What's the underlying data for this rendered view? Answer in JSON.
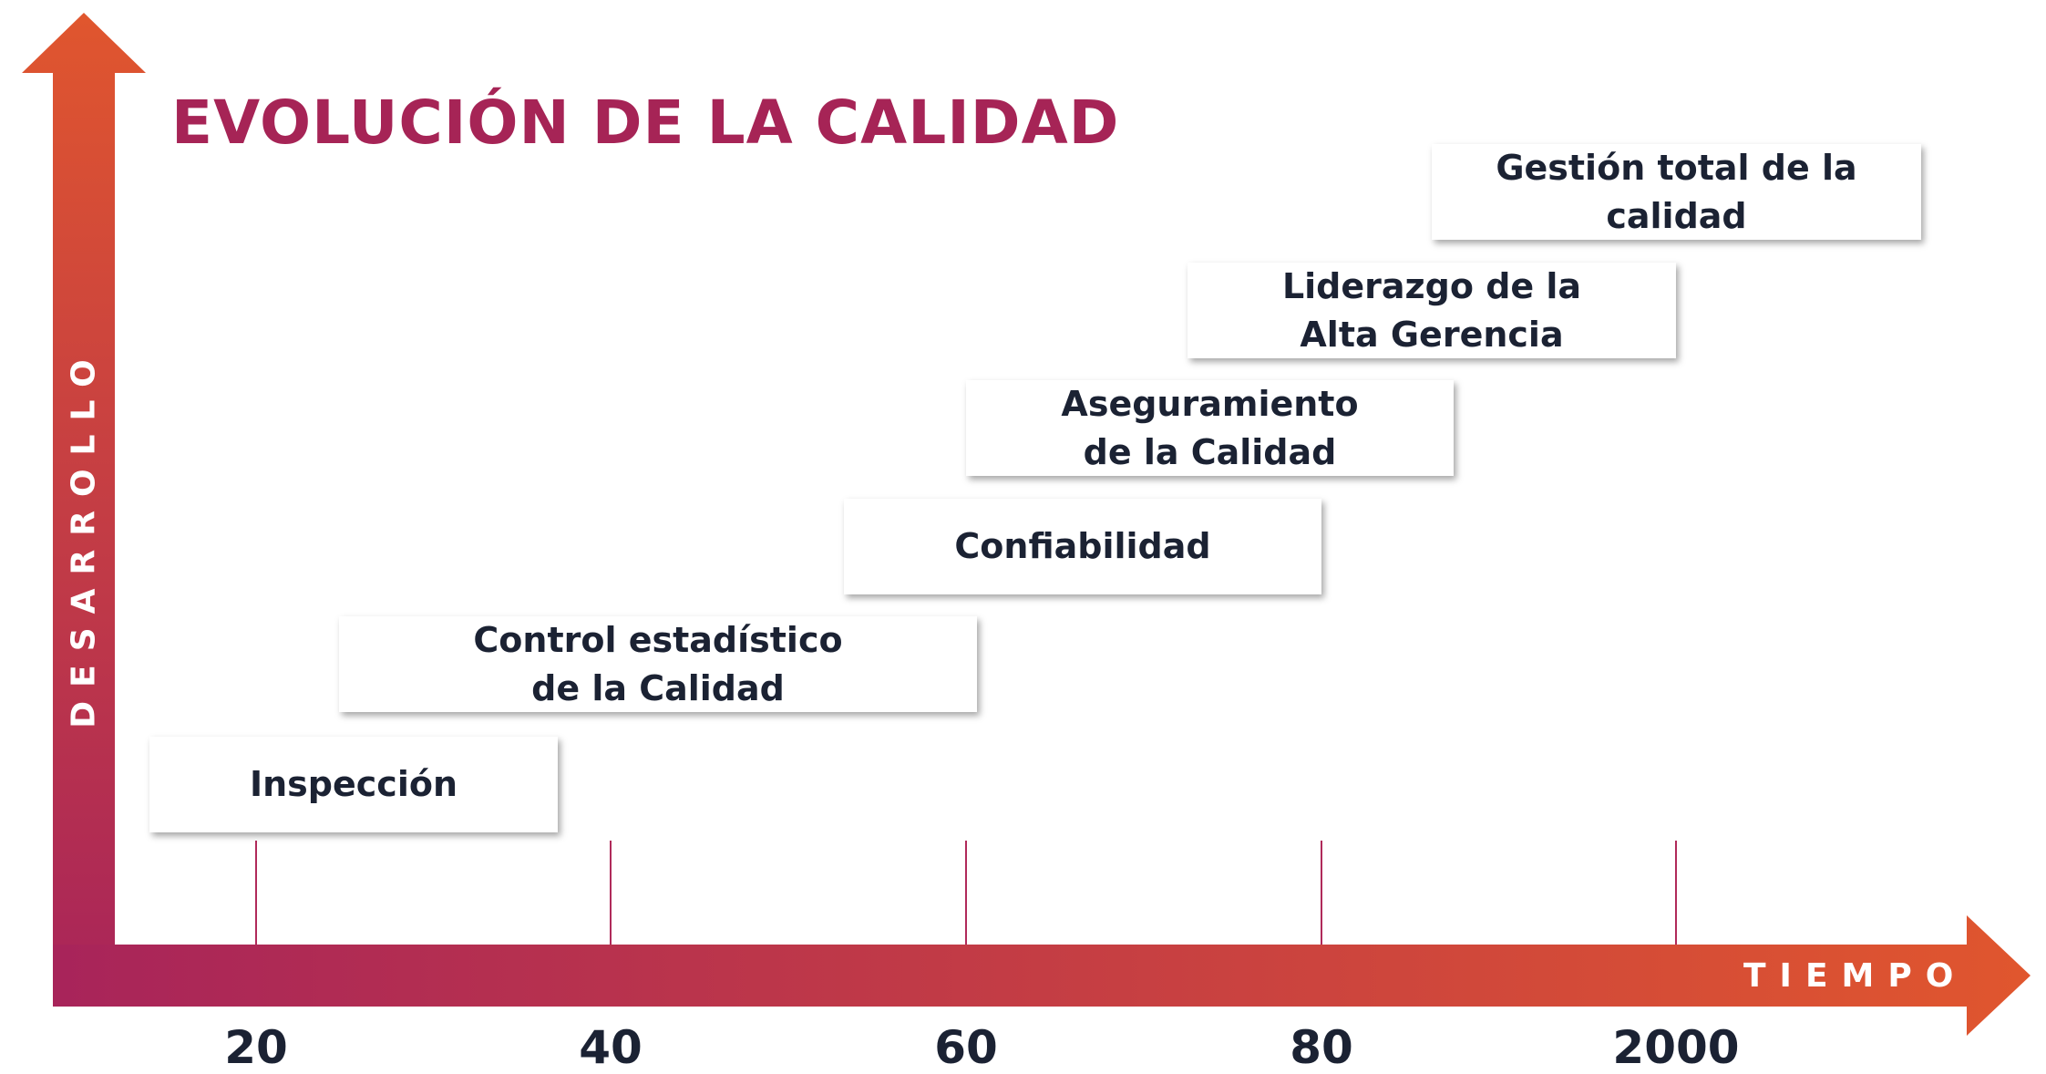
{
  "title": "EVOLUCIÓN DE LA CALIDAD",
  "y_axis_label": "DESARROLLO",
  "x_axis_label": "TIEMPO",
  "ticks": [
    "20",
    "40",
    "60",
    "80",
    "2000"
  ],
  "stages": [
    {
      "label": "Inspección"
    },
    {
      "label": "Control estadístico\nde la Calidad"
    },
    {
      "label": "Confiabilidad"
    },
    {
      "label": "Aseguramiento\nde la Calidad"
    },
    {
      "label": "Liderazgo de la\nAlta Gerencia"
    },
    {
      "label": "Gestión total de la\ncalidad"
    }
  ],
  "colors": {
    "title": "#a62456",
    "gradient_start": "#a8245a",
    "gradient_end": "#e0562e",
    "tick_line": "#b02a5a",
    "text": "#1b2233"
  }
}
